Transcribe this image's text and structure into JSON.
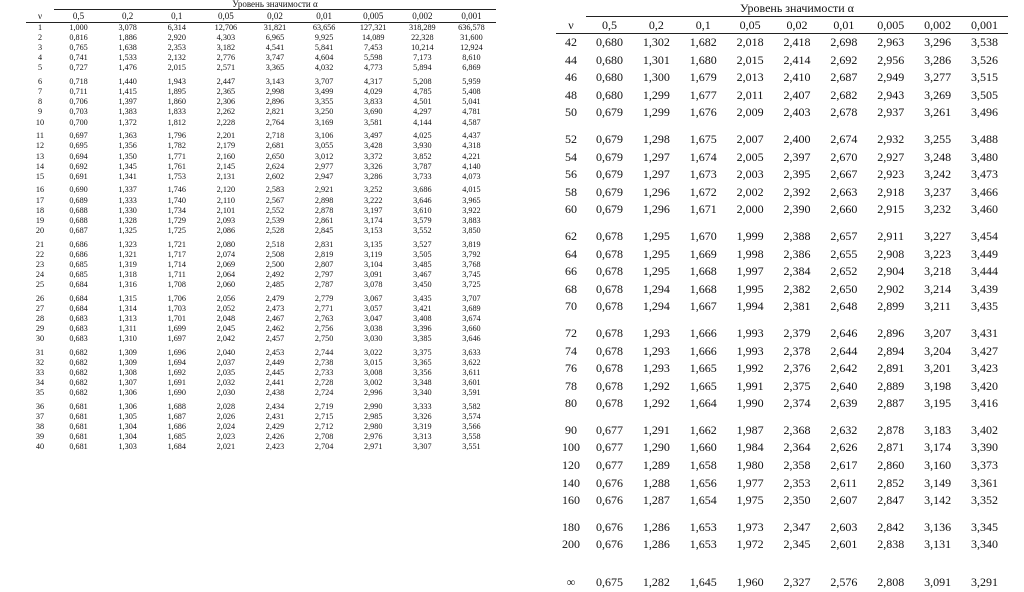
{
  "left_table": {
    "caption": "Уровень значимости α",
    "headers": [
      "ν",
      "0,5",
      "0,2",
      "0,1",
      "0,05",
      "0,02",
      "0,01",
      "0,005",
      "0,002",
      "0,001"
    ],
    "groups": [
      [
        [
          "1",
          "1,000",
          "3,078",
          "6,314",
          "12,706",
          "31,821",
          "63,656",
          "127,321",
          "318,289",
          "636,578"
        ],
        [
          "2",
          "0,816",
          "1,886",
          "2,920",
          "4,303",
          "6,965",
          "9,925",
          "14,089",
          "22,328",
          "31,600"
        ],
        [
          "3",
          "0,765",
          "1,638",
          "2,353",
          "3,182",
          "4,541",
          "5,841",
          "7,453",
          "10,214",
          "12,924"
        ],
        [
          "4",
          "0,741",
          "1,533",
          "2,132",
          "2,776",
          "3,747",
          "4,604",
          "5,598",
          "7,173",
          "8,610"
        ],
        [
          "5",
          "0,727",
          "1,476",
          "2,015",
          "2,571",
          "3,365",
          "4,032",
          "4,773",
          "5,894",
          "6,869"
        ]
      ],
      [
        [
          "6",
          "0,718",
          "1,440",
          "1,943",
          "2,447",
          "3,143",
          "3,707",
          "4,317",
          "5,208",
          "5,959"
        ],
        [
          "7",
          "0,711",
          "1,415",
          "1,895",
          "2,365",
          "2,998",
          "3,499",
          "4,029",
          "4,785",
          "5,408"
        ],
        [
          "8",
          "0,706",
          "1,397",
          "1,860",
          "2,306",
          "2,896",
          "3,355",
          "3,833",
          "4,501",
          "5,041"
        ],
        [
          "9",
          "0,703",
          "1,383",
          "1,833",
          "2,262",
          "2,821",
          "3,250",
          "3,690",
          "4,297",
          "4,781"
        ],
        [
          "10",
          "0,700",
          "1,372",
          "1,812",
          "2,228",
          "2,764",
          "3,169",
          "3,581",
          "4,144",
          "4,587"
        ]
      ],
      [
        [
          "11",
          "0,697",
          "1,363",
          "1,796",
          "2,201",
          "2,718",
          "3,106",
          "3,497",
          "4,025",
          "4,437"
        ],
        [
          "12",
          "0,695",
          "1,356",
          "1,782",
          "2,179",
          "2,681",
          "3,055",
          "3,428",
          "3,930",
          "4,318"
        ],
        [
          "13",
          "0,694",
          "1,350",
          "1,771",
          "2,160",
          "2,650",
          "3,012",
          "3,372",
          "3,852",
          "4,221"
        ],
        [
          "14",
          "0,692",
          "1,345",
          "1,761",
          "2,145",
          "2,624",
          "2,977",
          "3,326",
          "3,787",
          "4,140"
        ],
        [
          "15",
          "0,691",
          "1,341",
          "1,753",
          "2,131",
          "2,602",
          "2,947",
          "3,286",
          "3,733",
          "4,073"
        ]
      ],
      [
        [
          "16",
          "0,690",
          "1,337",
          "1,746",
          "2,120",
          "2,583",
          "2,921",
          "3,252",
          "3,686",
          "4,015"
        ],
        [
          "17",
          "0,689",
          "1,333",
          "1,740",
          "2,110",
          "2,567",
          "2,898",
          "3,222",
          "3,646",
          "3,965"
        ],
        [
          "18",
          "0,688",
          "1,330",
          "1,734",
          "2,101",
          "2,552",
          "2,878",
          "3,197",
          "3,610",
          "3,922"
        ],
        [
          "19",
          "0,688",
          "1,328",
          "1,729",
          "2,093",
          "2,539",
          "2,861",
          "3,174",
          "3,579",
          "3,883"
        ],
        [
          "20",
          "0,687",
          "1,325",
          "1,725",
          "2,086",
          "2,528",
          "2,845",
          "3,153",
          "3,552",
          "3,850"
        ]
      ],
      [
        [
          "21",
          "0,686",
          "1,323",
          "1,721",
          "2,080",
          "2,518",
          "2,831",
          "3,135",
          "3,527",
          "3,819"
        ],
        [
          "22",
          "0,686",
          "1,321",
          "1,717",
          "2,074",
          "2,508",
          "2,819",
          "3,119",
          "3,505",
          "3,792"
        ],
        [
          "23",
          "0,685",
          "1,319",
          "1,714",
          "2,069",
          "2,500",
          "2,807",
          "3,104",
          "3,485",
          "3,768"
        ],
        [
          "24",
          "0,685",
          "1,318",
          "1,711",
          "2,064",
          "2,492",
          "2,797",
          "3,091",
          "3,467",
          "3,745"
        ],
        [
          "25",
          "0,684",
          "1,316",
          "1,708",
          "2,060",
          "2,485",
          "2,787",
          "3,078",
          "3,450",
          "3,725"
        ]
      ],
      [
        [
          "26",
          "0,684",
          "1,315",
          "1,706",
          "2,056",
          "2,479",
          "2,779",
          "3,067",
          "3,435",
          "3,707"
        ],
        [
          "27",
          "0,684",
          "1,314",
          "1,703",
          "2,052",
          "2,473",
          "2,771",
          "3,057",
          "3,421",
          "3,689"
        ],
        [
          "28",
          "0,683",
          "1,313",
          "1,701",
          "2,048",
          "2,467",
          "2,763",
          "3,047",
          "3,408",
          "3,674"
        ],
        [
          "29",
          "0,683",
          "1,311",
          "1,699",
          "2,045",
          "2,462",
          "2,756",
          "3,038",
          "3,396",
          "3,660"
        ],
        [
          "30",
          "0,683",
          "1,310",
          "1,697",
          "2,042",
          "2,457",
          "2,750",
          "3,030",
          "3,385",
          "3,646"
        ]
      ],
      [
        [
          "31",
          "0,682",
          "1,309",
          "1,696",
          "2,040",
          "2,453",
          "2,744",
          "3,022",
          "3,375",
          "3,633"
        ],
        [
          "32",
          "0,682",
          "1,309",
          "1,694",
          "2,037",
          "2,449",
          "2,738",
          "3,015",
          "3,365",
          "3,622"
        ],
        [
          "33",
          "0,682",
          "1,308",
          "1,692",
          "2,035",
          "2,445",
          "2,733",
          "3,008",
          "3,356",
          "3,611"
        ],
        [
          "34",
          "0,682",
          "1,307",
          "1,691",
          "2,032",
          "2,441",
          "2,728",
          "3,002",
          "3,348",
          "3,601"
        ],
        [
          "35",
          "0,682",
          "1,306",
          "1,690",
          "2,030",
          "2,438",
          "2,724",
          "2,996",
          "3,340",
          "3,591"
        ]
      ],
      [
        [
          "36",
          "0,681",
          "1,306",
          "1,688",
          "2,028",
          "2,434",
          "2,719",
          "2,990",
          "3,333",
          "3,582"
        ],
        [
          "37",
          "0,681",
          "1,305",
          "1,687",
          "2,026",
          "2,431",
          "2,715",
          "2,985",
          "3,326",
          "3,574"
        ],
        [
          "38",
          "0,681",
          "1,304",
          "1,686",
          "2,024",
          "2,429",
          "2,712",
          "2,980",
          "3,319",
          "3,566"
        ],
        [
          "39",
          "0,681",
          "1,304",
          "1,685",
          "2,023",
          "2,426",
          "2,708",
          "2,976",
          "3,313",
          "3,558"
        ],
        [
          "40",
          "0,681",
          "1,303",
          "1,684",
          "2,021",
          "2,423",
          "2,704",
          "2,971",
          "3,307",
          "3,551"
        ]
      ]
    ]
  },
  "right_table": {
    "caption": "Уровень значимости α",
    "headers": [
      "ν",
      "0,5",
      "0,2",
      "0,1",
      "0,05",
      "0,02",
      "0,01",
      "0,005",
      "0,002",
      "0,001"
    ],
    "groups": [
      [
        [
          "42",
          "0,680",
          "1,302",
          "1,682",
          "2,018",
          "2,418",
          "2,698",
          "2,963",
          "3,296",
          "3,538"
        ],
        [
          "44",
          "0,680",
          "1,301",
          "1,680",
          "2,015",
          "2,414",
          "2,692",
          "2,956",
          "3,286",
          "3,526"
        ],
        [
          "46",
          "0,680",
          "1,300",
          "1,679",
          "2,013",
          "2,410",
          "2,687",
          "2,949",
          "3,277",
          "3,515"
        ],
        [
          "48",
          "0,680",
          "1,299",
          "1,677",
          "2,011",
          "2,407",
          "2,682",
          "2,943",
          "3,269",
          "3,505"
        ],
        [
          "50",
          "0,679",
          "1,299",
          "1,676",
          "2,009",
          "2,403",
          "2,678",
          "2,937",
          "3,261",
          "3,496"
        ]
      ],
      [
        [
          "52",
          "0,679",
          "1,298",
          "1,675",
          "2,007",
          "2,400",
          "2,674",
          "2,932",
          "3,255",
          "3,488"
        ],
        [
          "54",
          "0,679",
          "1,297",
          "1,674",
          "2,005",
          "2,397",
          "2,670",
          "2,927",
          "3,248",
          "3,480"
        ],
        [
          "56",
          "0,679",
          "1,297",
          "1,673",
          "2,003",
          "2,395",
          "2,667",
          "2,923",
          "3,242",
          "3,473"
        ],
        [
          "58",
          "0,679",
          "1,296",
          "1,672",
          "2,002",
          "2,392",
          "2,663",
          "2,918",
          "3,237",
          "3,466"
        ],
        [
          "60",
          "0,679",
          "1,296",
          "1,671",
          "2,000",
          "2,390",
          "2,660",
          "2,915",
          "3,232",
          "3,460"
        ]
      ],
      [
        [
          "62",
          "0,678",
          "1,295",
          "1,670",
          "1,999",
          "2,388",
          "2,657",
          "2,911",
          "3,227",
          "3,454"
        ],
        [
          "64",
          "0,678",
          "1,295",
          "1,669",
          "1,998",
          "2,386",
          "2,655",
          "2,908",
          "3,223",
          "3,449"
        ],
        [
          "66",
          "0,678",
          "1,295",
          "1,668",
          "1,997",
          "2,384",
          "2,652",
          "2,904",
          "3,218",
          "3,444"
        ],
        [
          "68",
          "0,678",
          "1,294",
          "1,668",
          "1,995",
          "2,382",
          "2,650",
          "2,902",
          "3,214",
          "3,439"
        ],
        [
          "70",
          "0,678",
          "1,294",
          "1,667",
          "1,994",
          "2,381",
          "2,648",
          "2,899",
          "3,211",
          "3,435"
        ]
      ],
      [
        [
          "72",
          "0,678",
          "1,293",
          "1,666",
          "1,993",
          "2,379",
          "2,646",
          "2,896",
          "3,207",
          "3,431"
        ],
        [
          "74",
          "0,678",
          "1,293",
          "1,666",
          "1,993",
          "2,378",
          "2,644",
          "2,894",
          "3,204",
          "3,427"
        ],
        [
          "76",
          "0,678",
          "1,293",
          "1,665",
          "1,992",
          "2,376",
          "2,642",
          "2,891",
          "3,201",
          "3,423"
        ],
        [
          "78",
          "0,678",
          "1,292",
          "1,665",
          "1,991",
          "2,375",
          "2,640",
          "2,889",
          "3,198",
          "3,420"
        ],
        [
          "80",
          "0,678",
          "1,292",
          "1,664",
          "1,990",
          "2,374",
          "2,639",
          "2,887",
          "3,195",
          "3,416"
        ]
      ],
      [
        [
          "90",
          "0,677",
          "1,291",
          "1,662",
          "1,987",
          "2,368",
          "2,632",
          "2,878",
          "3,183",
          "3,402"
        ],
        [
          "100",
          "0,677",
          "1,290",
          "1,660",
          "1,984",
          "2,364",
          "2,626",
          "2,871",
          "3,174",
          "3,390"
        ],
        [
          "120",
          "0,677",
          "1,289",
          "1,658",
          "1,980",
          "2,358",
          "2,617",
          "2,860",
          "3,160",
          "3,373"
        ],
        [
          "140",
          "0,676",
          "1,288",
          "1,656",
          "1,977",
          "2,353",
          "2,611",
          "2,852",
          "3,149",
          "3,361"
        ],
        [
          "160",
          "0,676",
          "1,287",
          "1,654",
          "1,975",
          "2,350",
          "2,607",
          "2,847",
          "3,142",
          "3,352"
        ]
      ],
      [
        [
          "180",
          "0,676",
          "1,286",
          "1,653",
          "1,973",
          "2,347",
          "2,603",
          "2,842",
          "3,136",
          "3,345"
        ],
        [
          "200",
          "0,676",
          "1,286",
          "1,653",
          "1,972",
          "2,345",
          "2,601",
          "2,838",
          "3,131",
          "3,340"
        ]
      ],
      [
        [
          "∞",
          "0,675",
          "1,282",
          "1,645",
          "1,960",
          "2,327",
          "2,576",
          "2,808",
          "3,091",
          "3,291"
        ]
      ]
    ]
  }
}
